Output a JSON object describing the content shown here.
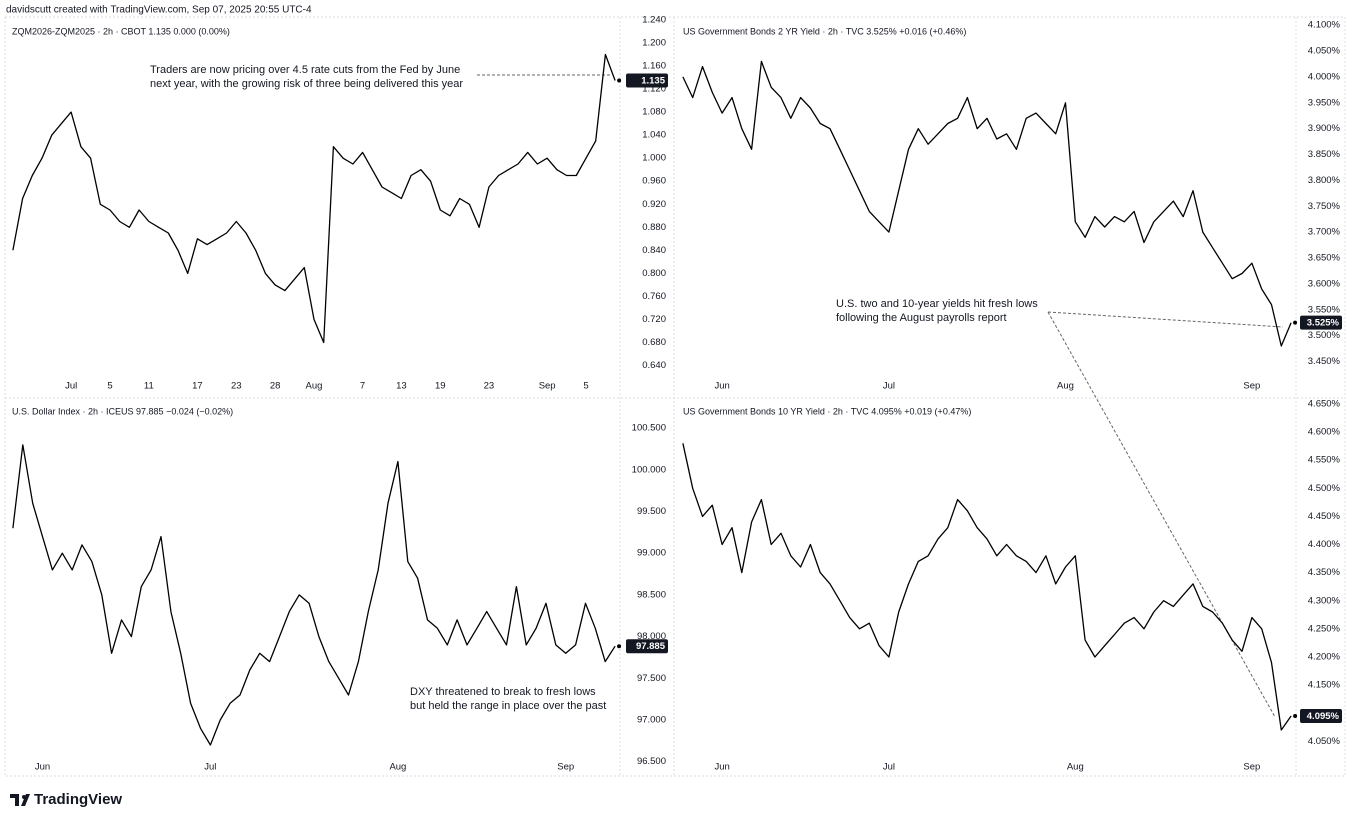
{
  "header": "davidscutt created with TradingView.com, Sep 07, 2025 20:55 UTC-4",
  "footer": "TradingView",
  "chart_data": [
    {
      "type": "line",
      "title": "ZQM2026-ZQM2025 · 2h · CBOT  1.135  0.000 (0.00%)",
      "color": "#000000",
      "annotation": [
        "Traders are now pricing over 4.5 rate cuts from the Fed by June",
        "next year, with the growing risk of three being delivered this year"
      ],
      "categories": [
        null,
        null,
        null,
        null,
        null,
        null,
        "Jul",
        null,
        null,
        null,
        "5",
        null,
        null,
        null,
        "11",
        null,
        null,
        null,
        null,
        "17",
        null,
        null,
        null,
        "23",
        null,
        null,
        null,
        "28",
        null,
        null,
        null,
        "Aug",
        null,
        null,
        null,
        null,
        "7",
        null,
        null,
        null,
        "13",
        null,
        null,
        null,
        "19",
        null,
        null,
        null,
        null,
        "23",
        null,
        null,
        null,
        null,
        null,
        "Sep",
        null,
        null,
        null,
        "5",
        null,
        null,
        null
      ],
      "values": [
        0.84,
        0.93,
        0.97,
        1.0,
        1.04,
        1.06,
        1.08,
        1.02,
        1.0,
        0.92,
        0.91,
        0.89,
        0.88,
        0.91,
        0.89,
        0.88,
        0.87,
        0.84,
        0.8,
        0.86,
        0.85,
        0.86,
        0.87,
        0.89,
        0.87,
        0.84,
        0.8,
        0.78,
        0.77,
        0.79,
        0.81,
        0.72,
        0.68,
        1.02,
        1.0,
        0.99,
        1.01,
        0.98,
        0.95,
        0.94,
        0.93,
        0.97,
        0.98,
        0.96,
        0.91,
        0.9,
        0.93,
        0.92,
        0.88,
        0.95,
        0.97,
        0.98,
        0.99,
        1.01,
        0.99,
        1.0,
        0.98,
        0.97,
        0.97,
        1.0,
        1.03,
        1.18,
        1.135
      ],
      "ylim": [
        0.62,
        1.24
      ],
      "yticks": [
        {
          "value": 0.64,
          "label": "0.640"
        },
        {
          "value": 0.68,
          "label": "0.680"
        },
        {
          "value": 0.72,
          "label": "0.720"
        },
        {
          "value": 0.76,
          "label": "0.760"
        },
        {
          "value": 0.8,
          "label": "0.800"
        },
        {
          "value": 0.84,
          "label": "0.840"
        },
        {
          "value": 0.88,
          "label": "0.880"
        },
        {
          "value": 0.92,
          "label": "0.920"
        },
        {
          "value": 0.96,
          "label": "0.960"
        },
        {
          "value": 1.0,
          "label": "1.000"
        },
        {
          "value": 1.04,
          "label": "1.040"
        },
        {
          "value": 1.08,
          "label": "1.080"
        },
        {
          "value": 1.12,
          "label": "1.120"
        },
        {
          "value": 1.16,
          "label": "1.160"
        },
        {
          "value": 1.2,
          "label": "1.200"
        },
        {
          "value": 1.24,
          "label": "1.240"
        }
      ]
    },
    {
      "type": "line",
      "title": "US Government Bonds 2 YR Yield · 2h · TVC  3.525%  +0.016 (+0.46%)",
      "color": "#000000",
      "annotation": [
        "U.S. two and 10-year yields hit fresh lows",
        "following the August payrolls report"
      ],
      "categories": [
        null,
        null,
        null,
        null,
        "Jun",
        null,
        null,
        null,
        null,
        null,
        null,
        null,
        null,
        null,
        null,
        null,
        null,
        null,
        null,
        null,
        null,
        "Jul",
        null,
        null,
        null,
        null,
        null,
        null,
        null,
        null,
        null,
        null,
        null,
        null,
        null,
        null,
        null,
        null,
        null,
        "Aug",
        null,
        null,
        null,
        null,
        null,
        null,
        null,
        null,
        null,
        null,
        null,
        null,
        null,
        null,
        null,
        null,
        null,
        null,
        "Sep",
        null,
        null,
        null,
        null
      ],
      "values": [
        4.0,
        3.96,
        4.02,
        3.97,
        3.93,
        3.96,
        3.9,
        3.86,
        4.03,
        3.98,
        3.96,
        3.92,
        3.96,
        3.94,
        3.91,
        3.9,
        3.86,
        3.82,
        3.78,
        3.74,
        3.72,
        3.7,
        3.78,
        3.86,
        3.9,
        3.87,
        3.89,
        3.91,
        3.92,
        3.96,
        3.9,
        3.92,
        3.88,
        3.89,
        3.86,
        3.92,
        3.93,
        3.91,
        3.89,
        3.95,
        3.72,
        3.69,
        3.73,
        3.71,
        3.73,
        3.72,
        3.74,
        3.68,
        3.72,
        3.74,
        3.76,
        3.73,
        3.78,
        3.7,
        3.67,
        3.64,
        3.61,
        3.62,
        3.64,
        3.59,
        3.56,
        3.48,
        3.525
      ],
      "value_labels": [
        null,
        null,
        null,
        null,
        null,
        null,
        null,
        null,
        null,
        null,
        null,
        null,
        null,
        null,
        null,
        null,
        null,
        null,
        null,
        null,
        null,
        null,
        null,
        null,
        null,
        null,
        null,
        null,
        null,
        null,
        null,
        null,
        null,
        null,
        null,
        null,
        null,
        null,
        null,
        null,
        null,
        null,
        null,
        null,
        null,
        null,
        null,
        null,
        null,
        null,
        null,
        null,
        null,
        null,
        null,
        null,
        null,
        null,
        null,
        null,
        null,
        null,
        "3.525%"
      ],
      "ylim": [
        3.42,
        4.11
      ],
      "yticks": [
        {
          "value": 3.45,
          "label": "3.450%"
        },
        {
          "value": 3.5,
          "label": "3.500%"
        },
        {
          "value": 3.55,
          "label": "3.550%"
        },
        {
          "value": 3.6,
          "label": "3.600%"
        },
        {
          "value": 3.65,
          "label": "3.650%"
        },
        {
          "value": 3.7,
          "label": "3.700%"
        },
        {
          "value": 3.75,
          "label": "3.750%"
        },
        {
          "value": 3.8,
          "label": "3.800%"
        },
        {
          "value": 3.85,
          "label": "3.850%"
        },
        {
          "value": 3.9,
          "label": "3.900%"
        },
        {
          "value": 3.95,
          "label": "3.950%"
        },
        {
          "value": 4.0,
          "label": "4.000%"
        },
        {
          "value": 4.05,
          "label": "4.050%"
        },
        {
          "value": 4.1,
          "label": "4.100%"
        }
      ]
    },
    {
      "type": "line",
      "title": "U.S. Dollar Index · 2h · ICEUS  97.885  −0.024 (−0.02%)",
      "color": "#000000",
      "annotation": [
        "DXY threatened to break to fresh lows",
        "but held the range in place over the past"
      ],
      "categories": [
        null,
        null,
        null,
        "Jun",
        null,
        null,
        null,
        null,
        null,
        null,
        null,
        null,
        null,
        null,
        null,
        null,
        null,
        null,
        null,
        null,
        "Jul",
        null,
        null,
        null,
        null,
        null,
        null,
        null,
        null,
        null,
        null,
        null,
        null,
        null,
        null,
        null,
        null,
        null,
        null,
        "Aug",
        null,
        null,
        null,
        null,
        null,
        null,
        null,
        null,
        null,
        null,
        null,
        null,
        null,
        null,
        null,
        null,
        "Sep",
        null,
        null,
        null,
        null,
        null
      ],
      "values": [
        99.3,
        100.3,
        99.6,
        99.2,
        98.8,
        99.0,
        98.8,
        99.1,
        98.9,
        98.5,
        97.8,
        98.2,
        98.0,
        98.6,
        98.8,
        99.2,
        98.3,
        97.8,
        97.2,
        96.9,
        96.7,
        97.0,
        97.2,
        97.3,
        97.6,
        97.8,
        97.7,
        98.0,
        98.3,
        98.5,
        98.4,
        98.0,
        97.7,
        97.5,
        97.3,
        97.7,
        98.3,
        98.8,
        99.6,
        100.1,
        98.9,
        98.7,
        98.2,
        98.1,
        97.9,
        98.2,
        97.9,
        98.1,
        98.3,
        98.1,
        97.9,
        98.6,
        97.9,
        98.1,
        98.4,
        97.9,
        97.8,
        97.9,
        98.4,
        98.1,
        97.7,
        97.885
      ],
      "ylim": [
        96.34,
        100.79
      ],
      "yticks": [
        {
          "value": 96.5,
          "label": "96.500"
        },
        {
          "value": 97.0,
          "label": "97.000"
        },
        {
          "value": 97.5,
          "label": "97.500"
        },
        {
          "value": 98.0,
          "label": "98.000"
        },
        {
          "value": 98.5,
          "label": "98.500"
        },
        {
          "value": 99.0,
          "label": "99.000"
        },
        {
          "value": 99.5,
          "label": "99.500"
        },
        {
          "value": 100.0,
          "label": "100.000"
        },
        {
          "value": 100.5,
          "label": "100.500"
        }
      ]
    },
    {
      "type": "line",
      "title": "US Government Bonds 10 YR Yield · 2h · TVC  4.095%  +0.019 (+0.47%)",
      "color": "#000000",
      "categories": [
        null,
        null,
        null,
        null,
        "Jun",
        null,
        null,
        null,
        null,
        null,
        null,
        null,
        null,
        null,
        null,
        null,
        null,
        null,
        null,
        null,
        null,
        "Jul",
        null,
        null,
        null,
        null,
        null,
        null,
        null,
        null,
        null,
        null,
        null,
        null,
        null,
        null,
        null,
        null,
        null,
        null,
        "Aug",
        null,
        null,
        null,
        null,
        null,
        null,
        null,
        null,
        null,
        null,
        null,
        null,
        null,
        null,
        null,
        null,
        null,
        "Sep",
        null,
        null,
        null,
        null
      ],
      "values": [
        4.58,
        4.5,
        4.45,
        4.47,
        4.4,
        4.43,
        4.35,
        4.44,
        4.48,
        4.4,
        4.42,
        4.38,
        4.36,
        4.4,
        4.35,
        4.33,
        4.3,
        4.27,
        4.25,
        4.26,
        4.22,
        4.2,
        4.28,
        4.33,
        4.37,
        4.38,
        4.41,
        4.43,
        4.48,
        4.46,
        4.43,
        4.41,
        4.38,
        4.4,
        4.38,
        4.37,
        4.35,
        4.38,
        4.33,
        4.36,
        4.38,
        4.23,
        4.2,
        4.22,
        4.24,
        4.26,
        4.27,
        4.25,
        4.28,
        4.3,
        4.29,
        4.31,
        4.33,
        4.29,
        4.28,
        4.26,
        4.23,
        4.21,
        4.27,
        4.25,
        4.19,
        4.07,
        4.095
      ],
      "value_labels": [
        null,
        null,
        null,
        null,
        null,
        null,
        null,
        null,
        null,
        null,
        null,
        null,
        null,
        null,
        null,
        null,
        null,
        null,
        null,
        null,
        null,
        null,
        null,
        null,
        null,
        null,
        null,
        null,
        null,
        null,
        null,
        null,
        null,
        null,
        null,
        null,
        null,
        null,
        null,
        null,
        null,
        null,
        null,
        null,
        null,
        null,
        null,
        null,
        null,
        null,
        null,
        null,
        null,
        null,
        null,
        null,
        null,
        null,
        null,
        null,
        null,
        null,
        "4.095%"
      ],
      "ylim": [
        3.99,
        4.65
      ],
      "yticks": [
        {
          "value": 4.05,
          "label": "4.050%"
        },
        {
          "value": 4.1,
          "label": "4.100%"
        },
        {
          "value": 4.15,
          "label": "4.150%"
        },
        {
          "value": 4.2,
          "label": "4.200%"
        },
        {
          "value": 4.25,
          "label": "4.250%"
        },
        {
          "value": 4.3,
          "label": "4.300%"
        },
        {
          "value": 4.35,
          "label": "4.350%"
        },
        {
          "value": 4.4,
          "label": "4.400%"
        },
        {
          "value": 4.45,
          "label": "4.450%"
        },
        {
          "value": 4.5,
          "label": "4.500%"
        },
        {
          "value": 4.55,
          "label": "4.550%"
        },
        {
          "value": 4.6,
          "label": "4.600%"
        },
        {
          "value": 4.65,
          "label": "4.650%"
        }
      ]
    }
  ]
}
